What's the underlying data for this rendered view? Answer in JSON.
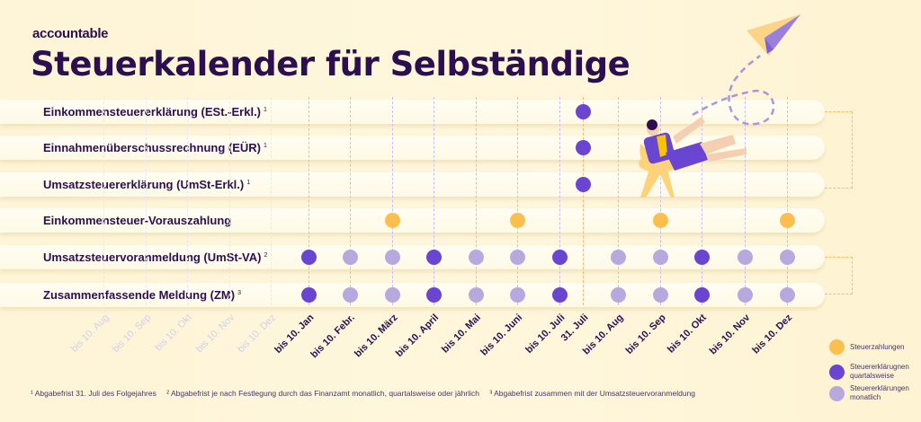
{
  "brand": {
    "logo": "accountable"
  },
  "title": "Steuerkalender für Selbständige",
  "colors": {
    "steuerzahlung": "#fbbf4f",
    "quartalsweise": "#6a45d1",
    "monatlich": "#b7a9dd",
    "title": "#2d0f4f",
    "background": "#fef5d8"
  },
  "columns": [
    "bis 10. Jan",
    "bis 10. Febr.",
    "bis 10. März",
    "bis 10. April",
    "bis 10. Mai",
    "bis 10. Juni",
    "bis 10. Juli",
    "31. Juli",
    "bis 10. Aug",
    "bis 10. Sep",
    "bis 10. Okt",
    "bis 10. Nov",
    "bis 10. Dez"
  ],
  "faded_columns": [
    "bis 10. Aug",
    "bis 10. Sep",
    "bis 10. Okt",
    "bis 10. Nov",
    "bis 10. Dez"
  ],
  "rows": [
    {
      "label": "Einkommensteuererklärung (ESt.-Erkl.)",
      "note": "1",
      "dots": {
        "31. Juli": "quartalsweise"
      }
    },
    {
      "label": "Einnahmenüberschussrechnung (EÜR)",
      "note": "1",
      "dots": {
        "31. Juli": "quartalsweise"
      }
    },
    {
      "label": "Umsatzsteuererklärung (UmSt-Erkl.)",
      "note": "1",
      "dots": {
        "31. Juli": "quartalsweise"
      }
    },
    {
      "label": "Einkommensteuer-Vorauszahlung",
      "note": "",
      "dots": {
        "bis 10. März": "steuerzahlung",
        "bis 10. Juni": "steuerzahlung",
        "bis 10. Sep": "steuerzahlung",
        "bis 10. Dez": "steuerzahlung"
      }
    },
    {
      "label": "Umsatzsteuervoranmeldung (UmSt-VA)",
      "note": "2",
      "dots": {
        "bis 10. Jan": "quartalsweise",
        "bis 10. Febr.": "monatlich",
        "bis 10. März": "monatlich",
        "bis 10. April": "quartalsweise",
        "bis 10. Mai": "monatlich",
        "bis 10. Juni": "monatlich",
        "bis 10. Juli": "quartalsweise",
        "bis 10. Aug": "monatlich",
        "bis 10. Sep": "monatlich",
        "bis 10. Okt": "quartalsweise",
        "bis 10. Nov": "monatlich",
        "bis 10. Dez": "monatlich"
      }
    },
    {
      "label": "Zusammenfassende Meldung (ZM)",
      "note": "3",
      "dots": {
        "bis 10. Jan": "quartalsweise",
        "bis 10. Febr.": "monatlich",
        "bis 10. März": "monatlich",
        "bis 10. April": "quartalsweise",
        "bis 10. Mai": "monatlich",
        "bis 10. Juni": "monatlich",
        "bis 10. Juli": "quartalsweise",
        "bis 10. Aug": "monatlich",
        "bis 10. Sep": "monatlich",
        "bis 10. Okt": "quartalsweise",
        "bis 10. Nov": "monatlich",
        "bis 10. Dez": "monatlich"
      }
    }
  ],
  "footnotes": [
    "¹ Abgabefrist 31. Juli des Folgejahres",
    "² Abgabefrist je nach Festlegung durch das Finanzamt monatlich, quartalsweise oder jährlich",
    "³ Abgabefrist zusammen mit der Umsatzsteuervoranmeldung"
  ],
  "legend": [
    {
      "key": "steuerzahlung",
      "label": "Steuerzahlungen"
    },
    {
      "key": "quartalsweise",
      "label": "Steuererklärugnen quartalsweise"
    },
    {
      "key": "monatlich",
      "label": "Steuererklärungen monatlich"
    }
  ]
}
